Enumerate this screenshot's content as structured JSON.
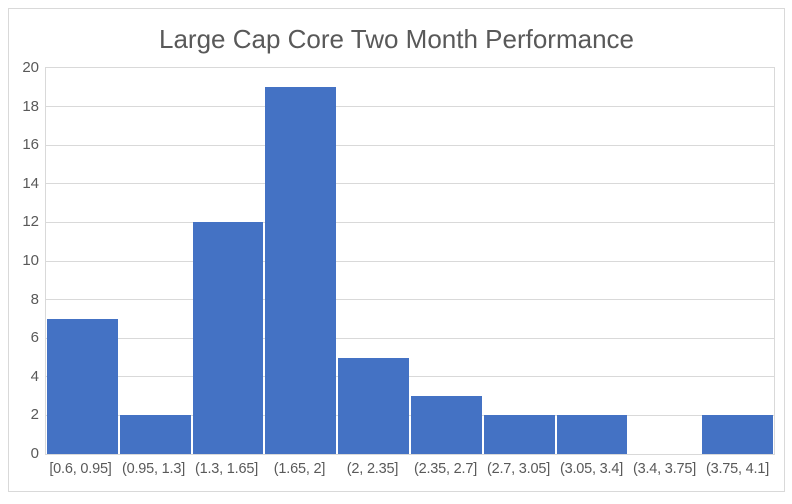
{
  "chart_data": {
    "type": "bar",
    "subtype": "histogram",
    "title": "Large Cap Core Two Month Performance",
    "categories": [
      "[0.6, 0.95]",
      "(0.95, 1.3]",
      "(1.3, 1.65]",
      "(1.65, 2]",
      "(2, 2.35]",
      "(2.35, 2.7]",
      "(2.7, 3.05]",
      "(3.05, 3.4]",
      "(3.4, 3.75]",
      "(3.75, 4.1]"
    ],
    "values": [
      7,
      2,
      12,
      19,
      5,
      3,
      2,
      2,
      0,
      2
    ],
    "xlabel": "",
    "ylabel": "",
    "ylim": [
      0,
      20
    ],
    "yticks": [
      0,
      2,
      4,
      6,
      8,
      10,
      12,
      14,
      16,
      18,
      20
    ],
    "grid": true,
    "legend_position": "none",
    "colors": {
      "bar": "#4472C4",
      "gridline": "#D9D9D9",
      "plot_border": "#D9D9D9",
      "frame_border": "#D9D9D9",
      "text": "#595959",
      "background": "#FFFFFF"
    }
  }
}
